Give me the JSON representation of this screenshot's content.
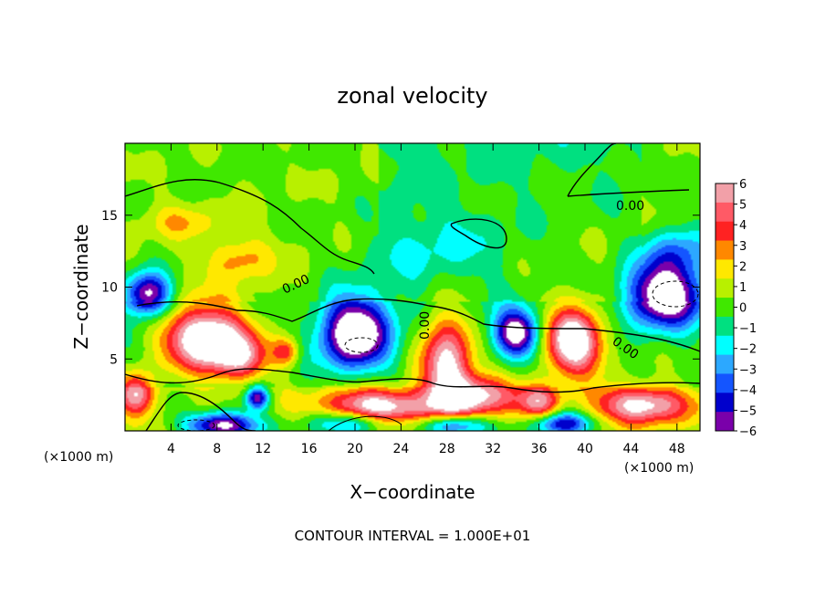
{
  "chart_data": {
    "type": "heatmap",
    "title": "zonal velocity",
    "xlabel": "X−coordinate",
    "ylabel": "Z−coordinate",
    "x_unit_label": "(×1000 m)",
    "y_unit_label": "(×1000 m)",
    "xlim": [
      0,
      50
    ],
    "ylim": [
      0,
      20
    ],
    "x_ticks": [
      4,
      8,
      12,
      16,
      20,
      24,
      28,
      32,
      36,
      40,
      44,
      48
    ],
    "y_ticks": [
      5,
      10,
      15
    ],
    "colorbar": {
      "levels": [
        6,
        5,
        4,
        3,
        2,
        1,
        0,
        -1,
        -2,
        -3,
        -4,
        -5,
        -6
      ],
      "labels": [
        "6",
        "5",
        "4",
        "3",
        "2",
        "1",
        "0",
        "−1",
        "−2",
        "−3",
        "−4",
        "−5",
        "−6"
      ],
      "colors": [
        "#f2a0a8",
        "#ff5a66",
        "#ff2222",
        "#ff8800",
        "#ffe800",
        "#b8f000",
        "#40e800",
        "#00e080",
        "#00ffff",
        "#2ca8ff",
        "#1455ff",
        "#0000cc",
        "#7a00aa"
      ],
      "over_color": "#ffffff",
      "under_color": "#ffffff"
    },
    "contour_labels": [
      "0.00",
      "0.00",
      "0.00",
      "0.00"
    ],
    "contour_interval_note": "CONTOUR INTERVAL = 1.000E+01",
    "features": [
      {
        "kind": "positive",
        "x": 7,
        "z": 6.5,
        "rx": 3.5,
        "rz": 2.2,
        "peak": 9
      },
      {
        "kind": "positive",
        "x": 10,
        "z": 5,
        "rx": 2.5,
        "rz": 1.6,
        "peak": 5
      },
      {
        "kind": "positive",
        "x": 14,
        "z": 5.5,
        "rx": 1.2,
        "rz": 1.0,
        "peak": 4
      },
      {
        "kind": "positive",
        "x": 5,
        "z": 14.5,
        "rx": 3,
        "rz": 1.2,
        "peak": 1.8
      },
      {
        "kind": "positive",
        "x": 10,
        "z": 12,
        "rx": 2.5,
        "rz": 1.5,
        "peak": 2.5
      },
      {
        "kind": "positive",
        "x": 28,
        "z": 4.5,
        "rx": 2.2,
        "rz": 3.8,
        "peak": 7
      },
      {
        "kind": "positive",
        "x": 31,
        "z": 2.5,
        "rx": 3,
        "rz": 1.5,
        "peak": 6
      },
      {
        "kind": "positive",
        "x": 39,
        "z": 6.2,
        "rx": 2.5,
        "rz": 2.2,
        "peak": 9
      },
      {
        "kind": "positive",
        "x": 22,
        "z": 1.5,
        "rx": 5,
        "rz": 1.4,
        "peak": 8
      },
      {
        "kind": "positive",
        "x": 45,
        "z": 1.8,
        "rx": 4,
        "rz": 1.3,
        "peak": 7
      },
      {
        "kind": "positive",
        "x": 36,
        "z": 2,
        "rx": 1.8,
        "rz": 1.2,
        "peak": 5
      },
      {
        "kind": "positive",
        "x": 1,
        "z": 2.5,
        "rx": 1.5,
        "rz": 1.5,
        "peak": 6
      },
      {
        "kind": "negative",
        "x": 2,
        "z": 9.5,
        "rx": 2,
        "rz": 1.5,
        "peak": -8
      },
      {
        "kind": "negative",
        "x": 20,
        "z": 6.8,
        "rx": 3,
        "rz": 2.5,
        "peak": -9
      },
      {
        "kind": "negative",
        "x": 34,
        "z": 6.8,
        "rx": 2,
        "rz": 1.6,
        "peak": -8
      },
      {
        "kind": "negative",
        "x": 47,
        "z": 9.5,
        "rx": 3.5,
        "rz": 2.2,
        "peak": -9
      },
      {
        "kind": "negative",
        "x": 8.5,
        "z": 0.4,
        "rx": 3,
        "rz": 0.9,
        "peak": -8
      },
      {
        "kind": "negative",
        "x": 20,
        "z": 0.6,
        "rx": 4,
        "rz": 0.9,
        "peak": -6
      },
      {
        "kind": "negative",
        "x": 28.5,
        "z": 0.4,
        "rx": 3,
        "rz": 0.8,
        "peak": -7
      },
      {
        "kind": "negative",
        "x": 11.5,
        "z": 2.3,
        "rx": 1,
        "rz": 0.8,
        "peak": -7
      },
      {
        "kind": "negative",
        "x": 38,
        "z": 0.5,
        "rx": 2.5,
        "rz": 0.8,
        "peak": -6
      },
      {
        "kind": "negative",
        "x": 27,
        "z": 12,
        "rx": 7,
        "rz": 3.5,
        "peak": -2.2
      },
      {
        "kind": "negative",
        "x": 48,
        "z": 12.5,
        "rx": 3,
        "rz": 1.8,
        "peak": -3.5
      }
    ]
  }
}
